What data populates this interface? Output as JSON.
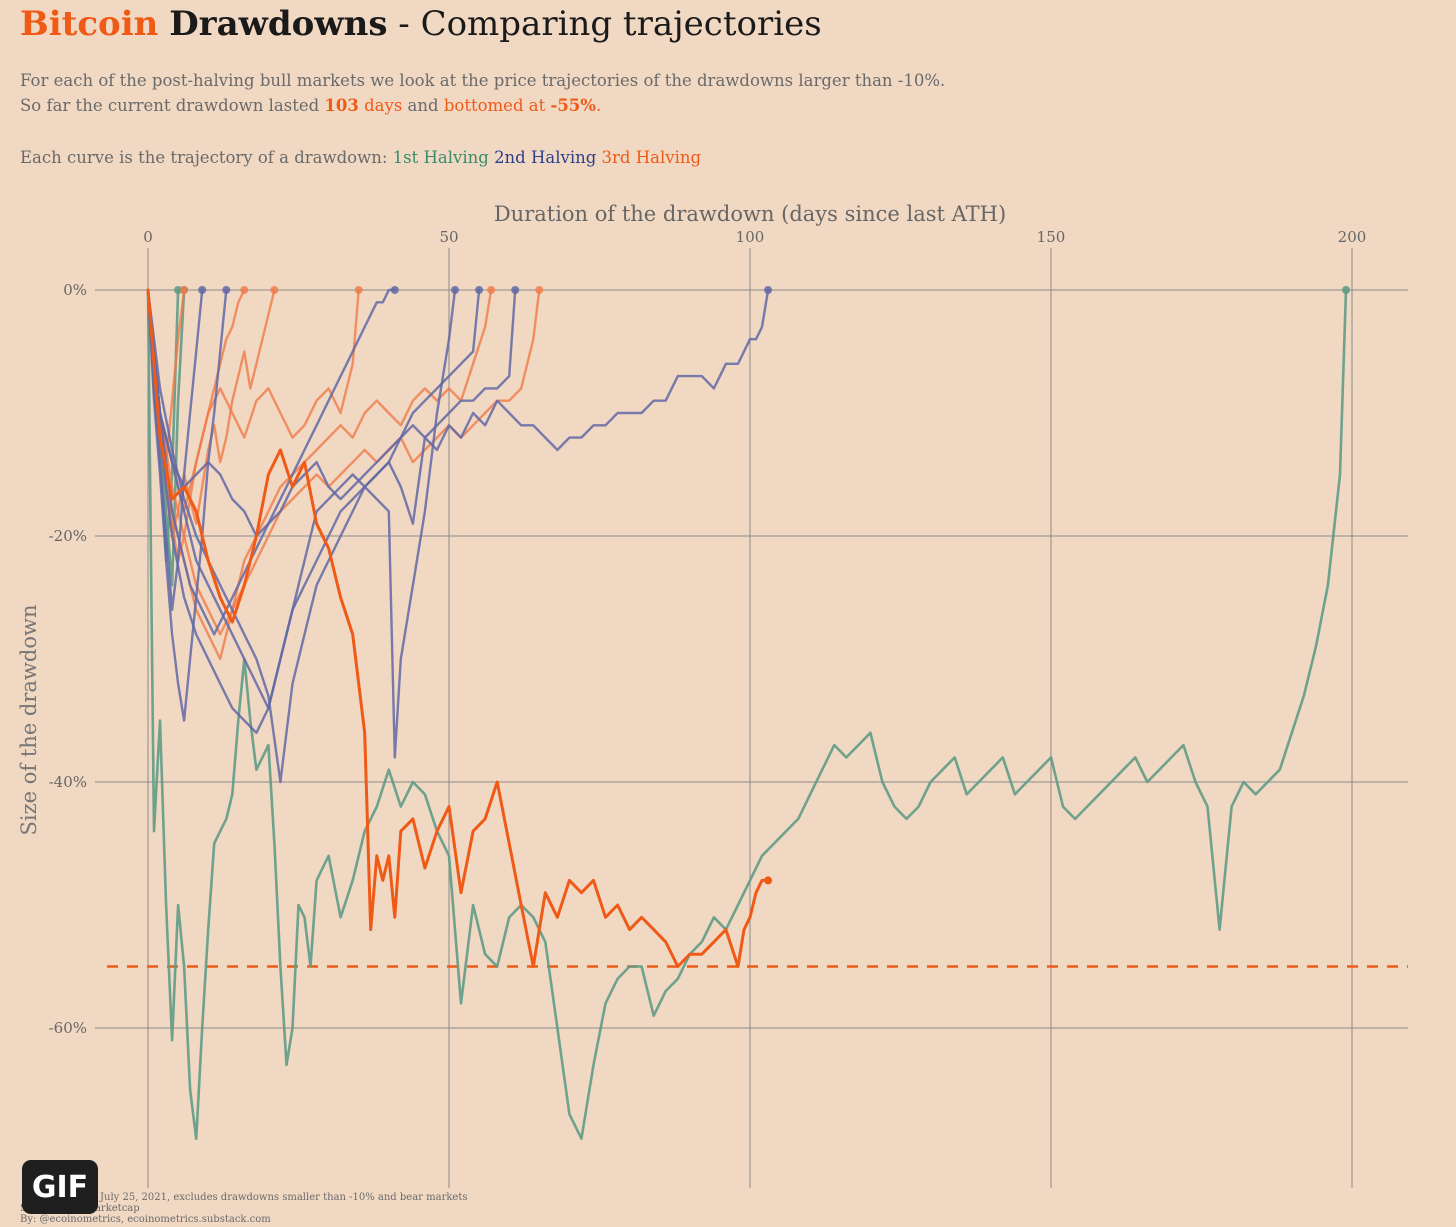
{
  "header": {
    "title_word1": "Bitcoin",
    "title_word2": "Drawdowns",
    "title_rest": " - Comparing trajectories",
    "subtitle_line1": "For each of the post-halving bull markets we look at the price trajectories of the drawdowns larger than -10%.",
    "subtitle_line2_a": "So far the current drawdown lasted ",
    "subtitle_line2_days_num": "103",
    "subtitle_line2_days_word": " days",
    "subtitle_line2_and": " and ",
    "subtitle_line2_bottomed": "bottomed at ",
    "subtitle_line2_pct": "-55%",
    "subtitle_line2_end": ".",
    "legend_intro": "Each curve is the trajectory of a drawdown: ",
    "legend_1": "1st Halving",
    "legend_2": "2nd Halving",
    "legend_3": "3rd Halving"
  },
  "footer": {
    "line1": "July 25, 2021, excludes drawdowns smaller than -10% and bear markets",
    "line2": "Source: Coinmarketcap",
    "line3": "By: @ecoinometrics, ecoinometrics.substack.com",
    "gif_label": "GIF"
  },
  "colors": {
    "background": "#f1d8c3",
    "first_halving": "#5f9c86",
    "second_halving": "#6068a6",
    "third_halving": "#f07a48",
    "current": "#f05a17",
    "grid": "#8a8a8a"
  },
  "chart_data": {
    "type": "line",
    "xlabel": "Duration of the drawdown (days since last ATH)",
    "ylabel": "Size of the drawdown",
    "x_axis_position": "top",
    "xlim": [
      0,
      210
    ],
    "ylim": [
      -73,
      0
    ],
    "x_ticks": [
      0,
      50,
      100,
      150,
      200
    ],
    "x_tick_labels": [
      "0",
      "50",
      "100",
      "150",
      "200"
    ],
    "y_ticks": [
      0,
      -20,
      -40,
      -60
    ],
    "y_tick_labels": [
      "0%",
      "-20%",
      "-40%",
      "-60%"
    ],
    "grid": true,
    "reference_line": {
      "y": -55,
      "style": "dashed",
      "color": "#f05a17"
    },
    "series": [
      {
        "group": "1st Halving",
        "x": [
          0,
          1,
          2,
          3,
          4,
          5,
          6,
          7,
          8,
          9,
          10,
          11,
          12,
          13,
          14,
          15,
          16,
          17,
          18,
          19,
          20,
          21,
          22,
          23,
          24,
          25,
          26,
          27,
          28,
          29,
          30,
          32,
          34,
          36,
          38,
          40,
          42,
          44,
          46,
          48,
          50,
          52,
          54,
          56,
          58,
          60,
          62,
          64,
          66,
          68,
          70,
          72,
          74,
          76,
          78,
          80,
          82,
          84,
          86,
          88,
          90,
          92,
          94,
          96,
          98,
          100,
          102,
          104,
          106,
          108,
          110,
          112,
          114,
          116,
          118,
          120,
          122,
          124,
          126,
          128,
          130,
          132,
          134,
          136,
          138,
          140,
          142,
          144,
          146,
          148,
          150,
          152,
          154,
          156,
          158,
          160,
          162,
          164,
          166,
          168,
          170,
          172,
          174,
          176,
          178,
          180,
          182,
          184,
          186,
          188,
          190,
          192,
          194,
          196,
          198,
          199
        ],
        "y": [
          0,
          -44,
          -35,
          -50,
          -61,
          -50,
          -55,
          -65,
          -69,
          -60,
          -52,
          -45,
          -44,
          -43,
          -41,
          -35,
          -30,
          -35,
          -39,
          -38,
          -37,
          -45,
          -55,
          -63,
          -60,
          -50,
          -51,
          -55,
          -48,
          -47,
          -46,
          -51,
          -48,
          -44,
          -42,
          -39,
          -42,
          -40,
          -41,
          -44,
          -46,
          -58,
          -50,
          -54,
          -55,
          -51,
          -50,
          -51,
          -53,
          -60,
          -67,
          -69,
          -63,
          -58,
          -56,
          -55,
          -55,
          -59,
          -57,
          -56,
          -54,
          -53,
          -51,
          -52,
          -50,
          -48,
          -46,
          -45,
          -44,
          -43,
          -41,
          -39,
          -37,
          -38,
          -37,
          -36,
          -40,
          -42,
          -43,
          -42,
          -40,
          -39,
          -38,
          -41,
          -40,
          -39,
          -38,
          -41,
          -40,
          -39,
          -38,
          -42,
          -43,
          -42,
          -41,
          -40,
          -39,
          -38,
          -40,
          -39,
          -38,
          -37,
          -40,
          -42,
          -52,
          -42,
          -40,
          -41,
          -40,
          -39,
          -36,
          -33,
          -29,
          -24,
          -15,
          0
        ]
      },
      {
        "group": "1st Halving",
        "x": [
          0,
          1,
          2,
          3,
          4,
          5
        ],
        "y": [
          0,
          -6,
          -12,
          -22,
          -15,
          0
        ]
      },
      {
        "group": "1st Halving",
        "x": [
          0,
          1,
          2,
          3,
          4,
          5,
          6
        ],
        "y": [
          0,
          -5,
          -10,
          -18,
          -24,
          -9,
          0
        ]
      },
      {
        "group": "2nd Halving",
        "x": [
          0,
          2,
          4,
          6,
          8,
          10,
          12,
          14,
          16,
          18,
          20,
          22,
          24,
          26,
          28,
          30,
          32,
          34,
          36,
          38,
          40,
          42,
          44,
          46,
          48,
          50,
          52,
          54,
          56,
          58,
          60,
          62,
          64,
          66,
          68,
          70,
          72,
          74,
          76,
          78,
          80,
          82,
          84,
          86,
          88,
          90,
          92,
          94,
          96,
          98,
          100,
          101,
          102,
          103
        ],
        "y": [
          0,
          -10,
          -14,
          -16,
          -15,
          -14,
          -15,
          -17,
          -18,
          -20,
          -19,
          -18,
          -16,
          -15,
          -14,
          -16,
          -17,
          -16,
          -15,
          -14,
          -13,
          -12,
          -11,
          -12,
          -13,
          -11,
          -12,
          -10,
          -11,
          -9,
          -10,
          -11,
          -11,
          -12,
          -13,
          -12,
          -12,
          -11,
          -11,
          -10,
          -10,
          -10,
          -9,
          -9,
          -7,
          -7,
          -7,
          -8,
          -6,
          -6,
          -4,
          -4,
          -3,
          0
        ]
      },
      {
        "group": "2nd Halving",
        "x": [
          0,
          2,
          4,
          6,
          8,
          10,
          12,
          14,
          16,
          18,
          20,
          22,
          24,
          26,
          28,
          30,
          32,
          34,
          36,
          38,
          40,
          41,
          42,
          44,
          46,
          48,
          50,
          51
        ],
        "y": [
          0,
          -12,
          -20,
          -25,
          -28,
          -30,
          -32,
          -34,
          -35,
          -36,
          -34,
          -30,
          -26,
          -22,
          -18,
          -17,
          -16,
          -15,
          -16,
          -17,
          -18,
          -38,
          -30,
          -24,
          -18,
          -10,
          -4,
          0
        ]
      },
      {
        "group": "2nd Halving",
        "x": [
          0,
          2,
          4,
          6,
          8,
          10,
          12,
          14,
          16,
          18,
          20,
          22,
          24,
          26,
          28,
          30,
          32,
          34,
          36,
          38,
          40,
          42,
          44,
          46,
          48,
          50,
          52,
          54,
          55
        ],
        "y": [
          0,
          -10,
          -14,
          -18,
          -22,
          -24,
          -26,
          -28,
          -30,
          -32,
          -34,
          -30,
          -26,
          -24,
          -22,
          -20,
          -18,
          -17,
          -16,
          -15,
          -14,
          -12,
          -10,
          -9,
          -8,
          -7,
          -6,
          -5,
          0
        ]
      },
      {
        "group": "2nd Halving",
        "x": [
          0,
          2,
          4,
          6,
          8,
          10,
          12,
          14,
          16,
          18,
          20,
          22,
          24,
          26,
          28,
          30,
          32,
          34,
          36,
          38,
          40,
          42,
          44,
          46,
          48,
          50,
          52,
          54,
          56,
          58,
          60,
          61
        ],
        "y": [
          0,
          -8,
          -13,
          -17,
          -20,
          -22,
          -24,
          -26,
          -28,
          -30,
          -33,
          -40,
          -32,
          -28,
          -24,
          -22,
          -20,
          -18,
          -16,
          -15,
          -14,
          -16,
          -19,
          -12,
          -11,
          -10,
          -9,
          -9,
          -8,
          -8,
          -7,
          0
        ]
      },
      {
        "group": "2nd Halving",
        "x": [
          0,
          1,
          2,
          3,
          4,
          5,
          6,
          7,
          8,
          9,
          10,
          11,
          12,
          13,
          14,
          15,
          16,
          17,
          18,
          19,
          20,
          21,
          22,
          23,
          24,
          25,
          26,
          27,
          28,
          29,
          30,
          31,
          32,
          33,
          34,
          35,
          36,
          37,
          38,
          39,
          40,
          41
        ],
        "y": [
          0,
          -6,
          -10,
          -14,
          -18,
          -20,
          -22,
          -24,
          -25,
          -26,
          -27,
          -28,
          -27,
          -26,
          -25,
          -24,
          -23,
          -22,
          -21,
          -20,
          -19,
          -18,
          -17,
          -16,
          -15,
          -14,
          -13,
          -12,
          -11,
          -10,
          -9,
          -8,
          -7,
          -6,
          -5,
          -4,
          -3,
          -2,
          -1,
          -1,
          0,
          0
        ]
      },
      {
        "group": "2nd Halving",
        "x": [
          0,
          1,
          2,
          3,
          4,
          5,
          6,
          7,
          8,
          9
        ],
        "y": [
          0,
          -8,
          -14,
          -20,
          -26,
          -22,
          -15,
          -10,
          -5,
          0
        ]
      },
      {
        "group": "2nd Halving",
        "x": [
          0,
          1,
          2,
          3,
          4,
          5,
          6,
          7,
          8,
          9,
          10,
          11,
          12,
          13
        ],
        "y": [
          0,
          -9,
          -15,
          -22,
          -28,
          -32,
          -35,
          -30,
          -25,
          -20,
          -14,
          -10,
          -5,
          0
        ]
      },
      {
        "group": "3rd Halving",
        "x": [
          0,
          2,
          4,
          6,
          8,
          10,
          12,
          14,
          16,
          18,
          20,
          22,
          24,
          26,
          28,
          30,
          32,
          34,
          36,
          38,
          40,
          42,
          44,
          46,
          48,
          50,
          52,
          54,
          56,
          58,
          60,
          62,
          64,
          65
        ],
        "y": [
          0,
          -10,
          -16,
          -20,
          -24,
          -26,
          -28,
          -26,
          -24,
          -22,
          -20,
          -18,
          -17,
          -16,
          -15,
          -16,
          -15,
          -14,
          -13,
          -14,
          -13,
          -12,
          -14,
          -13,
          -12,
          -11,
          -12,
          -11,
          -10,
          -9,
          -9,
          -8,
          -4,
          0
        ]
      },
      {
        "group": "3rd Halving",
        "x": [
          0,
          2,
          4,
          6,
          8,
          10,
          12,
          14,
          16,
          18,
          20,
          22,
          24,
          26,
          28,
          30,
          32,
          34,
          36,
          38,
          40,
          42,
          44,
          46,
          48,
          50,
          52,
          54,
          56,
          57
        ],
        "y": [
          0,
          -12,
          -18,
          -22,
          -26,
          -28,
          -30,
          -26,
          -22,
          -20,
          -18,
          -16,
          -15,
          -14,
          -13,
          -12,
          -11,
          -12,
          -10,
          -9,
          -10,
          -11,
          -9,
          -8,
          -9,
          -8,
          -9,
          -6,
          -3,
          0
        ]
      },
      {
        "group": "3rd Halving",
        "x": [
          0,
          2,
          4,
          6,
          8,
          10,
          12,
          14,
          16,
          18,
          20,
          22,
          24,
          26,
          28,
          30,
          32,
          34,
          35
        ],
        "y": [
          0,
          -10,
          -14,
          -18,
          -14,
          -10,
          -8,
          -10,
          -12,
          -9,
          -8,
          -10,
          -12,
          -11,
          -9,
          -8,
          -10,
          -6,
          0
        ]
      },
      {
        "group": "3rd Halving",
        "x": [
          0,
          1,
          2,
          3,
          4,
          5,
          6,
          7,
          8,
          9,
          10,
          11,
          12,
          13,
          14,
          15,
          16,
          17,
          18,
          19,
          20,
          21
        ],
        "y": [
          0,
          -8,
          -12,
          -16,
          -20,
          -18,
          -15,
          -17,
          -19,
          -16,
          -13,
          -11,
          -14,
          -12,
          -9,
          -7,
          -5,
          -8,
          -6,
          -4,
          -2,
          0
        ]
      },
      {
        "group": "3rd Halving",
        "x": [
          0,
          1,
          2,
          3,
          4,
          5,
          6,
          7,
          8,
          9,
          10,
          11,
          12,
          13,
          14,
          15,
          16
        ],
        "y": [
          0,
          -7,
          -11,
          -15,
          -19,
          -22,
          -20,
          -17,
          -14,
          -12,
          -10,
          -8,
          -6,
          -4,
          -3,
          -1,
          0
        ]
      },
      {
        "group": "3rd Halving",
        "x": [
          0,
          1,
          2,
          3,
          4,
          5,
          6
        ],
        "y": [
          0,
          -6,
          -10,
          -14,
          -9,
          -4,
          0
        ]
      },
      {
        "group": "current",
        "x": [
          0,
          2,
          4,
          6,
          8,
          10,
          12,
          14,
          16,
          18,
          20,
          22,
          24,
          26,
          28,
          30,
          32,
          34,
          36,
          37,
          38,
          39,
          40,
          41,
          42,
          44,
          46,
          48,
          50,
          52,
          54,
          56,
          58,
          60,
          62,
          64,
          66,
          68,
          70,
          72,
          74,
          76,
          78,
          80,
          82,
          84,
          86,
          88,
          90,
          92,
          94,
          96,
          98,
          99,
          100,
          101,
          102,
          103
        ],
        "y": [
          0,
          -12,
          -17,
          -16,
          -18,
          -22,
          -25,
          -27,
          -24,
          -20,
          -15,
          -13,
          -16,
          -14,
          -19,
          -21,
          -25,
          -28,
          -36,
          -52,
          -46,
          -48,
          -46,
          -51,
          -44,
          -43,
          -47,
          -44,
          -42,
          -49,
          -44,
          -43,
          -40,
          -45,
          -50,
          -55,
          -49,
          -51,
          -48,
          -49,
          -48,
          -51,
          -50,
          -52,
          -51,
          -52,
          -53,
          -55,
          -54,
          -54,
          -53,
          -52,
          -55,
          -52,
          -51,
          -49,
          -48,
          -48
        ]
      }
    ]
  }
}
